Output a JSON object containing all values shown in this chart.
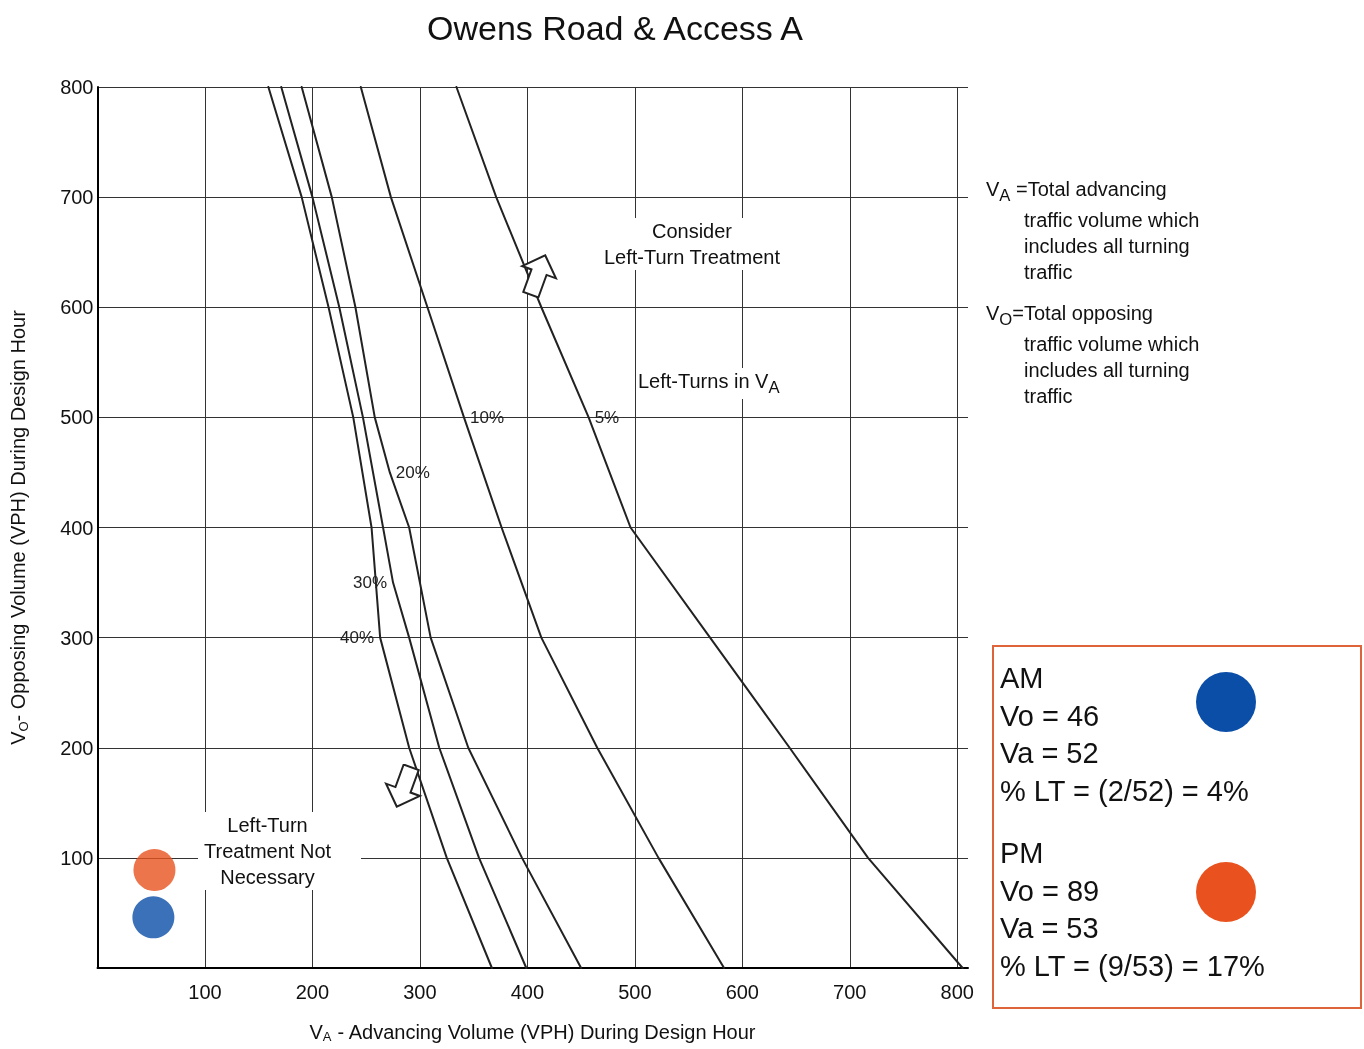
{
  "chart_data": {
    "type": "line",
    "title": "Owens Road & Access A",
    "xlabel": "V$_{A}$ - Advancing Volume (VPH) During Design Hour",
    "ylabel": "V$_{O}$- Opposing Volume (VPH) During Design Hour",
    "xlim": [
      0,
      810
    ],
    "xticks": [
      100,
      200,
      300,
      400,
      500,
      600,
      700,
      800
    ],
    "ylim": [
      0,
      800
    ],
    "yticks": [
      100,
      200,
      300,
      400,
      500,
      600,
      700,
      800
    ],
    "grid": true,
    "legend": false,
    "marker": "none",
    "line_style": "solid",
    "series": [
      {
        "name": "5%",
        "color": "#222222",
        "x": [
          334,
          371,
          413,
          457,
          496,
          570,
          644,
          717,
          805
        ],
        "values": [
          800,
          700,
          600,
          500,
          400,
          300,
          200,
          100,
          0
        ]
      },
      {
        "name": "10%",
        "color": "#222222",
        "x": [
          245,
          273,
          307,
          341,
          376,
          413,
          465,
          522,
          583
        ],
        "values": [
          800,
          700,
          600,
          500,
          400,
          300,
          200,
          100,
          0
        ]
      },
      {
        "name": "20%",
        "color": "#222222",
        "x": [
          190,
          218,
          240,
          258,
          272,
          290,
          310,
          345,
          395,
          450
        ],
        "values": [
          800,
          700,
          600,
          500,
          450,
          400,
          300,
          200,
          100,
          0
        ]
      },
      {
        "name": "30%",
        "color": "#222222",
        "x": [
          171,
          200,
          225,
          247,
          262,
          275,
          290,
          318,
          355,
          399
        ],
        "values": [
          800,
          700,
          600,
          500,
          420,
          350,
          300,
          200,
          100,
          0
        ]
      },
      {
        "name": "40%",
        "color": "#222222",
        "x": [
          159,
          190,
          215,
          238,
          255,
          263,
          290,
          325,
          367
        ],
        "values": [
          800,
          700,
          600,
          500,
          400,
          300,
          200,
          100,
          0
        ]
      },
      {
        "type": "scatter",
        "marker": "circle",
        "color": "#0a4ea8",
        "x": [
          52
        ],
        "values": [
          46
        ]
      },
      {
        "type": "scatter",
        "marker": "circle",
        "color": "#e9521e",
        "x": [
          53
        ],
        "values": [
          89
        ]
      }
    ],
    "annotations": [
      "Consider\nLeft-Turn Treatment",
      "Left-Turns in V$_{A}$",
      "Left-Turn\nTreatment Not\nNecessary",
      "V$_{A}$ =Total advancing\ntraffic volume which\nincludes all turning\ntraffic",
      "V$_{O}$=Total opposing\ntraffic volume which\nincludes all turning\ntraffic",
      "AM\nVo = 46\nVa = 52\n% LT = (2/52) = 4%",
      "PM\nVo = 89\nVa = 53\n% LT = (9/53) = 17%"
    ]
  }
}
